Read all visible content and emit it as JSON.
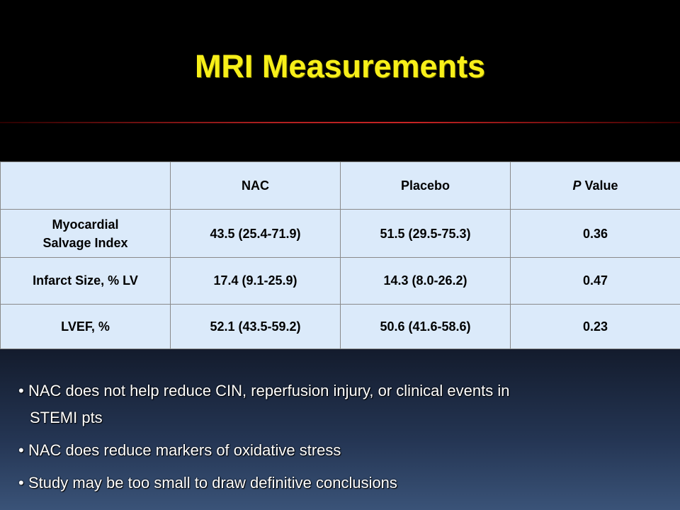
{
  "slide": {
    "title": "MRI Measurements"
  },
  "table": {
    "headers": {
      "blank": "",
      "col1": "NAC",
      "col2": "Placebo",
      "col3_italic": "P",
      "col3_rest": " Value"
    },
    "rows": [
      {
        "label_line1": "Myocardial",
        "label_line2": "Salvage Index",
        "nac": "43.5 (25.4-71.9)",
        "placebo": "51.5 (29.5-75.3)",
        "p": "0.36"
      },
      {
        "label": "Infarct Size, % LV",
        "nac": "17.4 (9.1-25.9)",
        "placebo": "14.3 (8.0-26.2)",
        "p": "0.47"
      },
      {
        "label": "LVEF, %",
        "nac": "52.1 (43.5-59.2)",
        "placebo": "50.6 (41.6-58.6)",
        "p": "0.23"
      }
    ]
  },
  "bullets": {
    "b1_line1": "NAC does not help reduce CIN, reperfusion injury, or clinical events in",
    "b1_line2": "STEMI pts",
    "b2": "NAC does reduce markers of oxidative stress",
    "b3": "Study may be too small to draw definitive conclusions",
    "marker": "•"
  },
  "colors": {
    "title": "#f7ef19",
    "table_fill": "#dbeafa",
    "rule": "#c82424",
    "bullet_text": "#ffffff"
  }
}
